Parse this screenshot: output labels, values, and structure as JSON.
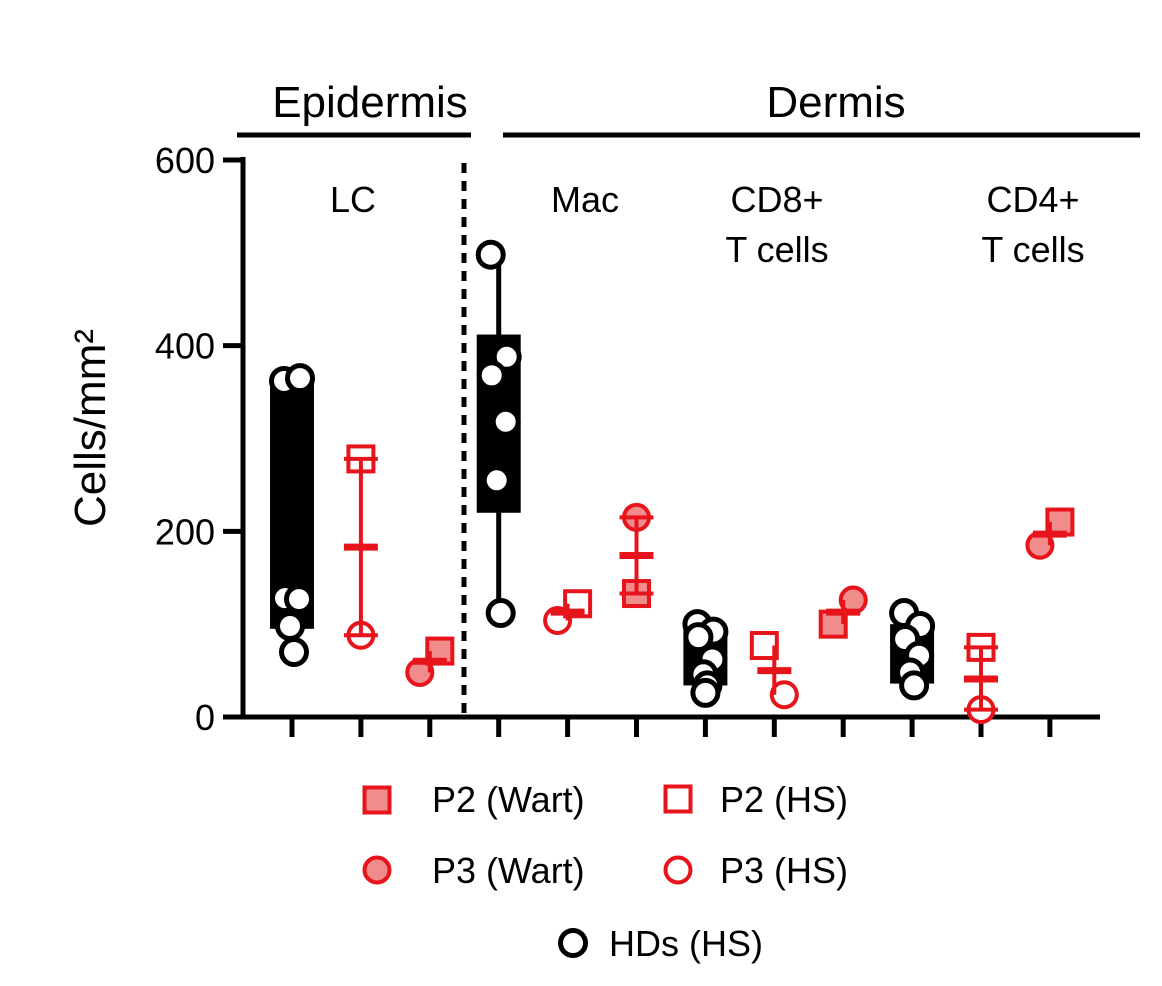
{
  "chart_data": {
    "type": "scatter",
    "ylabel": "Cells/mm²",
    "ylim": [
      0,
      600
    ],
    "yticks": [
      0,
      200,
      400,
      600
    ],
    "regions": [
      {
        "name": "Epidermis",
        "groups": [
          "LC"
        ]
      },
      {
        "name": "Dermis",
        "groups": [
          "Mac",
          "CD8+ T cells",
          "CD4+ T cells"
        ]
      }
    ],
    "groups": [
      {
        "label_lines": [
          "LC"
        ],
        "columns": [
          1,
          2,
          3
        ]
      },
      {
        "label_lines": [
          "Mac"
        ],
        "columns": [
          4,
          5,
          6
        ]
      },
      {
        "label_lines": [
          "CD8+",
          "T cells"
        ],
        "columns": [
          7,
          8,
          9
        ]
      },
      {
        "label_lines": [
          "CD4+",
          "T cells"
        ],
        "columns": [
          10,
          11,
          12
        ]
      }
    ],
    "columns": [
      {
        "index": 1,
        "series": "HDs (HS)",
        "values": [
          362,
          365,
          128,
          127,
          98,
          70
        ],
        "range_bar": [
          95,
          365
        ]
      },
      {
        "index": 2,
        "series": "HS",
        "points": [
          {
            "series": "P2 (HS)",
            "value": 278
          },
          {
            "series": "P3 (HS)",
            "value": 88
          }
        ],
        "mean": 183
      },
      {
        "index": 3,
        "series": "Wart",
        "points": [
          {
            "series": "P3 (Wart)",
            "value": 48
          },
          {
            "series": "P2 (Wart)",
            "value": 71
          }
        ],
        "mean": 60
      },
      {
        "index": 4,
        "series": "HDs (HS)",
        "values": [
          498,
          388,
          368,
          318,
          255,
          112
        ],
        "range_bar": [
          220,
          412
        ]
      },
      {
        "index": 5,
        "series": "HS",
        "points": [
          {
            "series": "P3 (HS)",
            "value": 104
          },
          {
            "series": "P2 (HS)",
            "value": 122
          }
        ],
        "mean": 113
      },
      {
        "index": 6,
        "series": "Wart",
        "points": [
          {
            "series": "P3 (Wart)",
            "value": 215
          },
          {
            "series": "P2 (Wart)",
            "value": 133
          }
        ],
        "mean": 174
      },
      {
        "index": 7,
        "series": "HDs (HS)",
        "values": [
          100,
          92,
          86,
          62,
          46,
          34,
          26
        ],
        "range_bar": [
          34,
          98
        ]
      },
      {
        "index": 8,
        "series": "HS",
        "points": [
          {
            "series": "P2 (HS)",
            "value": 77
          },
          {
            "series": "P3 (HS)",
            "value": 24
          }
        ],
        "mean": 50
      },
      {
        "index": 9,
        "series": "Wart",
        "points": [
          {
            "series": "P2 (Wart)",
            "value": 100
          },
          {
            "series": "P3 (Wart)",
            "value": 126
          }
        ],
        "mean": 113
      },
      {
        "index": 10,
        "series": "HDs (HS)",
        "values": [
          112,
          98,
          84,
          66,
          48,
          34
        ],
        "range_bar": [
          36,
          100
        ]
      },
      {
        "index": 11,
        "series": "HS",
        "points": [
          {
            "series": "P2 (HS)",
            "value": 75
          },
          {
            "series": "P3 (HS)",
            "value": 8
          }
        ],
        "mean": 41
      },
      {
        "index": 12,
        "series": "Wart",
        "points": [
          {
            "series": "P3 (Wart)",
            "value": 185
          },
          {
            "series": "P2 (Wart)",
            "value": 210
          }
        ],
        "mean": 197
      }
    ],
    "legend": [
      {
        "series": "P2 (Wart)",
        "marker": "square-filled"
      },
      {
        "series": "P2 (HS)",
        "marker": "square-open"
      },
      {
        "series": "P3 (Wart)",
        "marker": "circle-filled"
      },
      {
        "series": "P3 (HS)",
        "marker": "circle-open"
      },
      {
        "series": "HDs (HS)",
        "marker": "circle-open-black"
      }
    ],
    "legend_placement": "bottom-center",
    "colors": {
      "patient": "#e8141c",
      "patient_fill": "#f08c8c",
      "hd": "#000000"
    }
  }
}
